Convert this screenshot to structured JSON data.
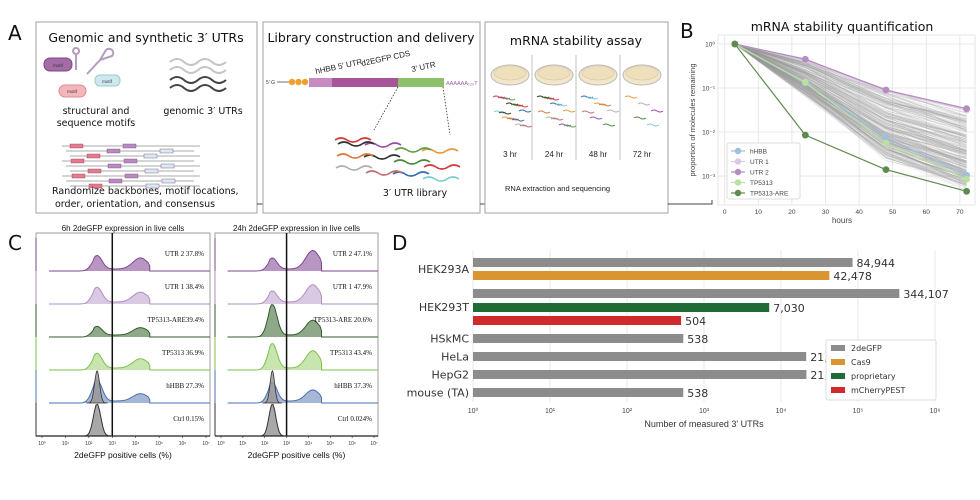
{
  "panel_labels": {
    "a": "A",
    "b": "B",
    "c": "C",
    "d": "D"
  },
  "panel_a": {
    "box1": {
      "title": "Genomic and synthetic 3′ UTRs",
      "motif_label": "motif",
      "structural_caption_1": "structural and",
      "structural_caption_2": "sequence motifs",
      "genomic_caption": "genomic 3′ UTRs",
      "randomize_caption_1": "Randomize backbones, motif locations,",
      "randomize_caption_2": "order, orientation, and consensus"
    },
    "box2": {
      "title": "Library construction and delivery",
      "five_prime": "5′ G",
      "cap_label": "P",
      "seg_5utr": "hHBB 5′ UTR",
      "seg_cds": "d2EGFP CDS",
      "seg_3utr": "3′ UTR",
      "polya": "AAAAAA₁₂₀T",
      "library_caption": "3′ UTR library"
    },
    "box3": {
      "title": "mRNA stability assay",
      "timepoints": [
        "3 hr",
        "24 hr",
        "48 hr",
        "72 hr"
      ],
      "caption": "RNA extraction and sequencing"
    }
  },
  "chart_data": [
    {
      "id": "B",
      "type": "line",
      "title": "mRNA stability quantification",
      "xlabel": "hours",
      "ylabel": "proportion of molecules remaining",
      "x": [
        3,
        24,
        48,
        72
      ],
      "xlim": [
        -2,
        74.5
      ],
      "xticks": [
        "0",
        "10",
        "20",
        "30",
        "40",
        "50",
        "60",
        "70"
      ],
      "yscale": "log",
      "ylim": [
        0.00022,
        1.6
      ],
      "yticks": [
        "10⁰",
        "10⁻¹",
        "10⁻²",
        "10⁻³"
      ],
      "grid": true,
      "legend_position": "bottom-left",
      "series": [
        {
          "name": "hHBB",
          "color": "#9fbfdc",
          "values": [
            1,
            0.13,
            0.0075,
            0.00105
          ]
        },
        {
          "name": "UTR 1",
          "color": "#dcc6e0",
          "values": [
            1,
            0.43,
            0.085,
            0.032
          ]
        },
        {
          "name": "UTR 2",
          "color": "#b48cc0",
          "values": [
            1,
            0.45,
            0.09,
            0.034
          ]
        },
        {
          "name": "TP5313",
          "color": "#b9e0a0",
          "values": [
            1,
            0.135,
            0.0056,
            0.00085
          ]
        },
        {
          "name": "TP5313-ARE",
          "color": "#5f8a4e",
          "values": [
            1,
            0.0085,
            0.0014,
            0.00045
          ]
        }
      ],
      "background_traces_color": "#9a9a9a"
    },
    {
      "id": "C",
      "type": "area",
      "xscale": "log",
      "xticks": [
        "10⁰",
        "10¹",
        "10²",
        "10³",
        "10⁴",
        "10⁵",
        "10⁶",
        "10⁷"
      ],
      "xlabel": "2deGFP positive cells (%)",
      "panels": [
        {
          "title": "6h 2deGFP expression in live cells",
          "gate_log10": 3,
          "rows": [
            {
              "label": "UTR 2 37.8%",
              "line": "#7b4a8a",
              "fill": "#b995c4",
              "neg_peak": 0.55,
              "pos_peak": 0.45
            },
            {
              "label": "UTR 1 38.4%",
              "line": "#b08ec0",
              "fill": "#dac9e2",
              "neg_peak": 0.6,
              "pos_peak": 0.4
            },
            {
              "label": "TP5313-ARE39.4%",
              "line": "#2f5e2a",
              "fill": "#8ea889",
              "neg_peak": 0.35,
              "pos_peak": 0.3
            },
            {
              "label": "TP5313 36.9%",
              "line": "#7cc24a",
              "fill": "#c8e4af",
              "neg_peak": 0.6,
              "pos_peak": 0.38
            },
            {
              "label": "hHBB 27.3%",
              "line": "#4a70b0",
              "fill": "#a6b7d5",
              "neg_peak": 0.85,
              "pos_peak": 0.3,
              "ctrl_overlay": true
            },
            {
              "label": "Ctrl 0.15%",
              "line": "#333333",
              "fill": "#a8a8a8",
              "ctrl": true
            }
          ]
        },
        {
          "title": "24h 2deGFP expression in live cells",
          "gate_log10": 3,
          "rows": [
            {
              "label": "UTR 2 47.1%",
              "line": "#7b4a8a",
              "fill": "#b995c4",
              "neg_peak": 0.45,
              "pos_peak": 0.75
            },
            {
              "label": "UTR 1 47.9%",
              "line": "#b08ec0",
              "fill": "#dac9e2",
              "neg_peak": 0.45,
              "pos_peak": 0.7
            },
            {
              "label": "TP5313-ARE 20.6%",
              "line": "#2f5e2a",
              "fill": "#8ea889",
              "neg_peak": 1.25,
              "pos_peak": 0.6
            },
            {
              "label": "TP5313 43.4%",
              "line": "#7cc24a",
              "fill": "#c8e4af",
              "neg_peak": 1.0,
              "pos_peak": 0.7
            },
            {
              "label": "hHBB 37.3%",
              "line": "#4a70b0",
              "fill": "#a6b7d5",
              "neg_peak": 0.75,
              "pos_peak": 0.45,
              "ctrl_overlay": true
            },
            {
              "label": "Ctrl 0.024%",
              "line": "#333333",
              "fill": "#a8a8a8",
              "ctrl": true
            }
          ]
        }
      ]
    },
    {
      "id": "D",
      "type": "bar",
      "orientation": "horizontal",
      "xscale": "log",
      "xlim": [
        1,
        1000000
      ],
      "xticks": [
        "10⁰",
        "10¹",
        "10²",
        "10³",
        "10⁴",
        "10⁵",
        "10⁶"
      ],
      "xlabel": "Number of measured 3' UTRs",
      "grid": true,
      "legend_position": "bottom-right",
      "legend": [
        {
          "name": "2deGFP",
          "color": "#8c8c8c"
        },
        {
          "name": "Cas9",
          "color": "#d9952f"
        },
        {
          "name": "proprietary",
          "color": "#1f6a35"
        },
        {
          "name": "mCherryPEST",
          "color": "#d12a2d"
        }
      ],
      "groups": [
        {
          "category": "HEK293A",
          "bars": [
            {
              "reporter": "2deGFP",
              "value": 84944,
              "label": "84,944"
            },
            {
              "reporter": "Cas9",
              "value": 42478,
              "label": "42,478"
            }
          ]
        },
        {
          "category": "HEK293T",
          "bars": [
            {
              "reporter": "2deGFP",
              "value": 344107,
              "label": "344,107"
            },
            {
              "reporter": "proprietary",
              "value": 7030,
              "label": "7,030"
            },
            {
              "reporter": "mCherryPEST",
              "value": 504,
              "label": "504"
            }
          ]
        },
        {
          "category": "HSkMC",
          "bars": [
            {
              "reporter": "2deGFP",
              "value": 538,
              "label": "538"
            }
          ]
        },
        {
          "category": "HeLa",
          "bars": [
            {
              "reporter": "2deGFP",
              "value": 21244,
              "label": "21,244"
            }
          ]
        },
        {
          "category": "HepG2",
          "bars": [
            {
              "reporter": "2deGFP",
              "value": 21381,
              "label": "21,381"
            }
          ]
        },
        {
          "category": "mouse (TA)",
          "bars": [
            {
              "reporter": "2deGFP",
              "value": 538,
              "label": "538"
            }
          ]
        }
      ]
    }
  ]
}
